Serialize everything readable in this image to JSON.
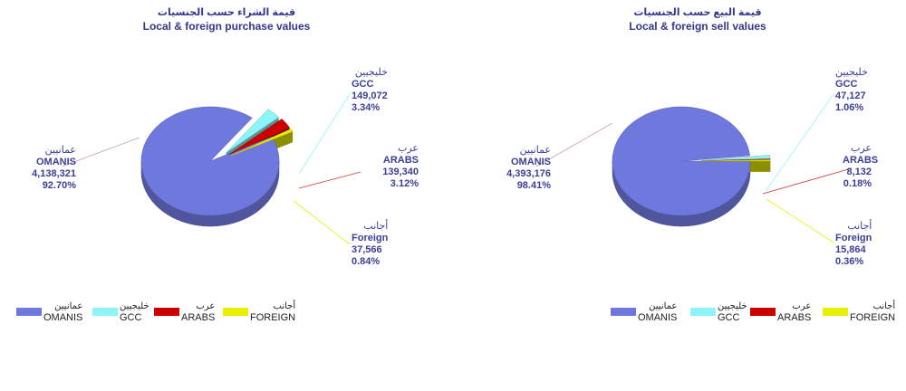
{
  "charts": [
    {
      "title_ar": "قيمة الشراء حسب الجنسيات",
      "title_en": "Local & foreign purchase values",
      "labels": [
        {
          "ar": "عمانيين",
          "en": "OMANIS",
          "value": "4,138,321",
          "pct": "92.70%"
        },
        {
          "ar": "خليجيين",
          "en": "GCC",
          "value": "149,072",
          "pct": "3.34%"
        },
        {
          "ar": "عرب",
          "en": "ARABS",
          "value": "139,340",
          "pct": "3.12%"
        },
        {
          "ar": "أجانب",
          "en": "Foreign",
          "value": "37,566",
          "pct": "0.84%"
        }
      ],
      "legend": [
        {
          "ar": "عمانيين",
          "en": "OMANIS"
        },
        {
          "ar": "خليجيين",
          "en": "GCC"
        },
        {
          "ar": "عرب",
          "en": "ARABS"
        },
        {
          "ar": "أجانب",
          "en": "FOREIGN"
        }
      ]
    },
    {
      "title_ar": "قيمة البيع حسب الجنسيات",
      "title_en": "Local & foreign sell values",
      "labels": [
        {
          "ar": "عمانيين",
          "en": "OMANIS",
          "value": "4,393,176",
          "pct": "98.41%"
        },
        {
          "ar": "خليجيين",
          "en": "GCC",
          "value": "47,127",
          "pct": "1.06%"
        },
        {
          "ar": "عرب",
          "en": "ARABS",
          "value": "8,132",
          "pct": "0.18%"
        },
        {
          "ar": "أجانب",
          "en": "Foreign",
          "value": "15,864",
          "pct": "0.36%"
        }
      ],
      "legend": [
        {
          "ar": "عمانيين",
          "en": "OMANIS"
        },
        {
          "ar": "خليجيين",
          "en": "GCC"
        },
        {
          "ar": "عرب",
          "en": "ARABS"
        },
        {
          "ar": "أجانب",
          "en": "FOREIGN"
        }
      ]
    }
  ],
  "colors": {
    "omanis": "#6f78dc",
    "gcc": "#8ff4f8",
    "arabs": "#cc0000",
    "foreign": "#e6f000",
    "text": "#33368c"
  },
  "chart_data": [
    {
      "type": "pie",
      "title": "Local & foreign purchase values",
      "categories": [
        "OMANIS",
        "GCC",
        "ARABS",
        "FOREIGN"
      ],
      "values": [
        4138321,
        149072,
        139340,
        37566
      ],
      "percentages": [
        92.7,
        3.34,
        3.12,
        0.84
      ],
      "legend": "bottom-left",
      "exploded": [
        "GCC",
        "ARABS",
        "FOREIGN"
      ]
    },
    {
      "type": "pie",
      "title": "Local & foreign sell values",
      "categories": [
        "OMANIS",
        "GCC",
        "ARABS",
        "FOREIGN"
      ],
      "values": [
        4393176,
        47127,
        8132,
        15864
      ],
      "percentages": [
        98.41,
        1.06,
        0.18,
        0.36
      ],
      "legend": "bottom-left",
      "exploded": [
        "GCC",
        "ARABS",
        "FOREIGN"
      ]
    }
  ]
}
